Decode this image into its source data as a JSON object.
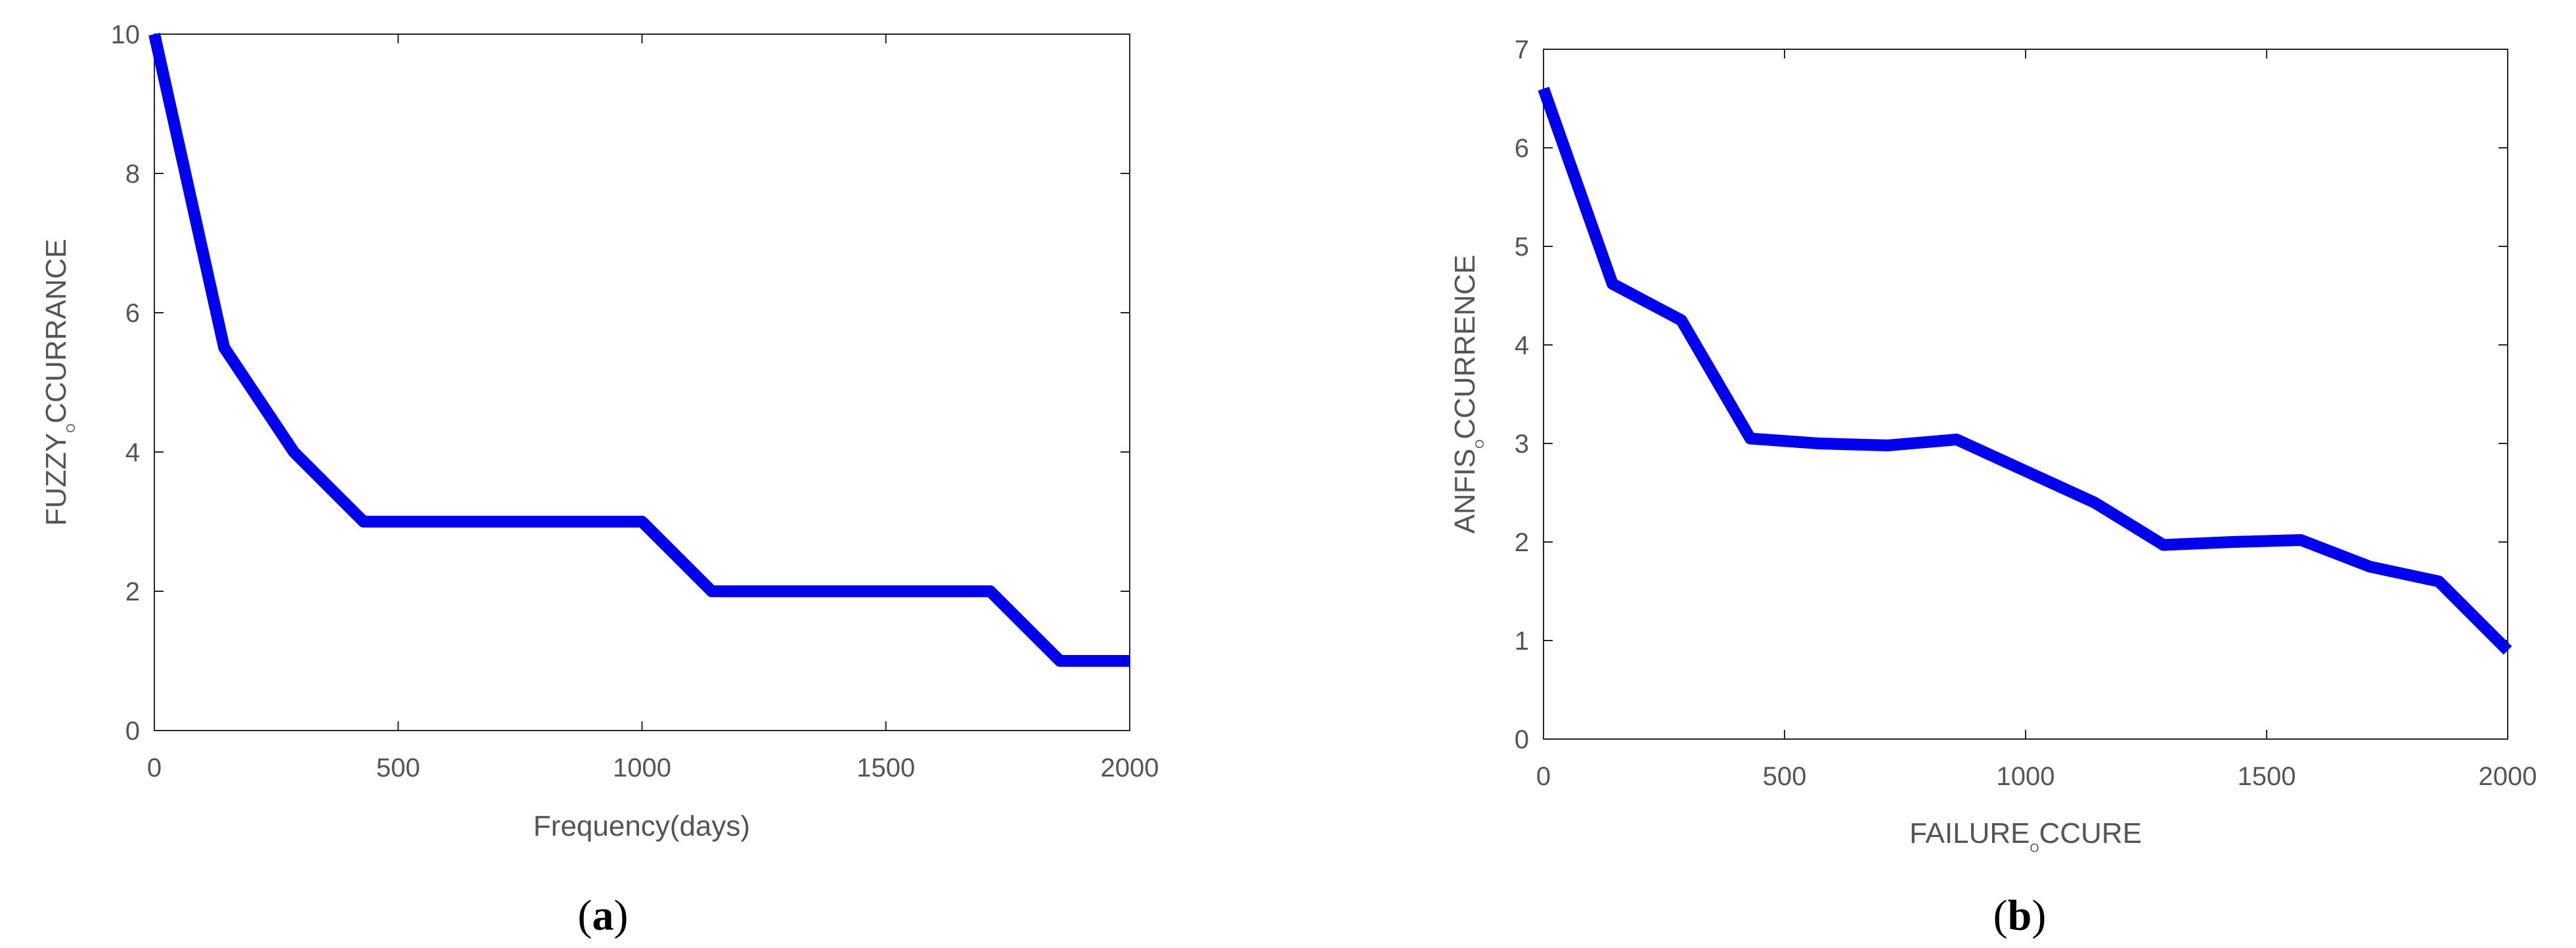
{
  "chart_data": [
    {
      "type": "line",
      "panel": "a",
      "panel_label_open": "(",
      "panel_label_letter": "a",
      "panel_label_close": ")",
      "xlabel": "Frequency(days)",
      "ylabel_main": "FUZZY",
      "ylabel_sub": "O",
      "ylabel_rest": "CCURRANCE",
      "xlim": [
        0,
        2000
      ],
      "ylim": [
        0,
        10
      ],
      "xticks": [
        0,
        500,
        1000,
        1500,
        2000
      ],
      "yticks": [
        0,
        2,
        4,
        6,
        8,
        10
      ],
      "grid": false,
      "line_color": "#0000ee",
      "series": [
        {
          "x": [
            0,
            143,
            286,
            429,
            571,
            714,
            857,
            1000,
            1143,
            1286,
            1429,
            1571,
            1714,
            1857,
            2000
          ],
          "y": [
            10,
            5.5,
            4,
            3,
            3,
            3,
            3,
            3,
            2,
            2,
            2,
            2,
            2,
            1,
            1
          ]
        }
      ]
    },
    {
      "type": "line",
      "panel": "b",
      "panel_label_open": "(",
      "panel_label_letter": "b",
      "panel_label_close": ")",
      "xlabel_main": "FAILURE",
      "xlabel_sub": "O",
      "xlabel_rest": "CCURE",
      "ylabel_main": "ANFIS",
      "ylabel_sub": "O",
      "ylabel_rest": "CCURRENCE",
      "xlim": [
        0,
        2000
      ],
      "ylim": [
        0,
        7
      ],
      "xticks": [
        0,
        500,
        1000,
        1500,
        2000
      ],
      "yticks": [
        0,
        1,
        2,
        3,
        4,
        5,
        6,
        7
      ],
      "grid": false,
      "line_color": "#0000ee",
      "series": [
        {
          "x": [
            0,
            143,
            286,
            429,
            571,
            714,
            857,
            1000,
            1143,
            1286,
            1429,
            1571,
            1714,
            1857,
            2000
          ],
          "y": [
            6.6,
            4.62,
            4.25,
            3.05,
            3.0,
            2.98,
            3.04,
            2.72,
            2.4,
            1.97,
            2.0,
            2.02,
            1.75,
            1.6,
            0.9
          ]
        }
      ]
    }
  ]
}
